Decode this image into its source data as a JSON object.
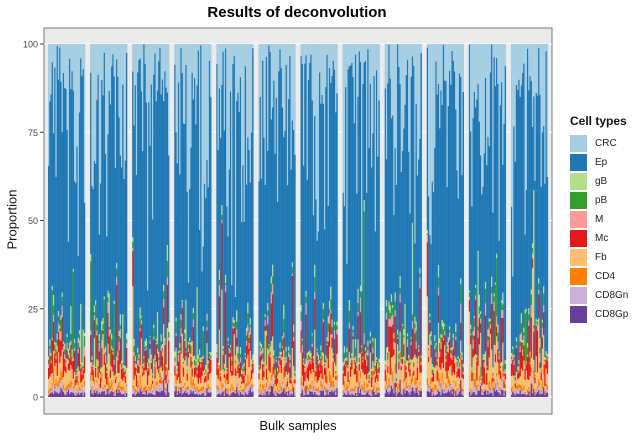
{
  "chart_data": {
    "type": "bar",
    "stacked": true,
    "title": "Results of deconvolution",
    "xlabel": "Bulk samples",
    "ylabel": "Proportion",
    "ylim": [
      0,
      100
    ],
    "yticks": [
      0,
      25,
      50,
      75,
      100
    ],
    "grid": true,
    "legend_title": "Cell types",
    "legend_position": "right",
    "groups": 12,
    "samples_per_group": 30,
    "series": [
      {
        "name": "CRC",
        "color": "#a6cee3",
        "typical_value": 30
      },
      {
        "name": "Ep",
        "color": "#1f78b4",
        "typical_value": 58
      },
      {
        "name": "gB",
        "color": "#b2df8a",
        "typical_value": 1
      },
      {
        "name": "pB",
        "color": "#33a02c",
        "typical_value": 1
      },
      {
        "name": "M",
        "color": "#fb9a99",
        "typical_value": 1
      },
      {
        "name": "Mc",
        "color": "#e31a1c",
        "typical_value": 3
      },
      {
        "name": "Fb",
        "color": "#fdbf6f",
        "typical_value": 3
      },
      {
        "name": "CD4",
        "color": "#ff7f00",
        "typical_value": 1
      },
      {
        "name": "CD8Gn",
        "color": "#cab2d6",
        "typical_value": 1
      },
      {
        "name": "CD8Gp",
        "color": "#6a3d9a",
        "typical_value": 1
      }
    ]
  }
}
